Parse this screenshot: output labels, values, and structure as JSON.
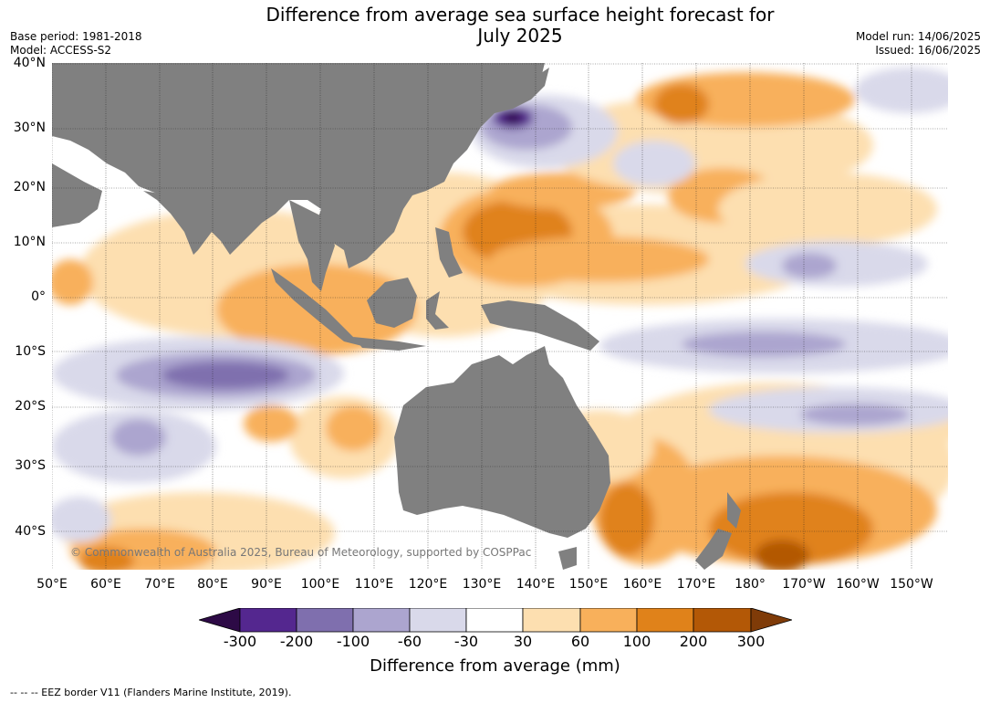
{
  "title": {
    "line1": "Difference from average sea surface height forecast for",
    "line2": "July 2025"
  },
  "meta": {
    "base_period": "Base period: 1981-2018",
    "model": "Model: ACCESS-S2",
    "model_run": "Model run: 14/06/2025",
    "issued": "Issued: 16/06/2025"
  },
  "map": {
    "lat_labels": [
      "40°N",
      "30°N",
      "20°N",
      "10°N",
      "0°",
      "10°S",
      "20°S",
      "30°S",
      "40°S"
    ],
    "lon_labels": [
      "50°E",
      "60°E",
      "70°E",
      "80°E",
      "90°E",
      "100°E",
      "110°E",
      "120°E",
      "130°E",
      "140°E",
      "150°E",
      "160°E",
      "170°E",
      "180°",
      "170°W",
      "160°W",
      "150°W"
    ],
    "copyright": "© Commonwealth of Australia 2025, Bureau of Meteorology, supported by COSPPac",
    "colors": {
      "land": "#808080",
      "grid": "#222222"
    }
  },
  "colorbar": {
    "ticks": [
      "-300",
      "-200",
      "-100",
      "-60",
      "-30",
      "30",
      "60",
      "100",
      "200",
      "300"
    ],
    "colors": [
      "#2d0a46",
      "#54278f",
      "#7f6fae",
      "#aca5cf",
      "#d9d9ea",
      "#ffffff",
      "#fddfb0",
      "#f8b05b",
      "#e0821a",
      "#b35806",
      "#7f3b08"
    ],
    "label": "Difference from average (mm)"
  },
  "footnote": "--  --  -- EEZ border V11 (Flanders Marine Institute, 2019)."
}
